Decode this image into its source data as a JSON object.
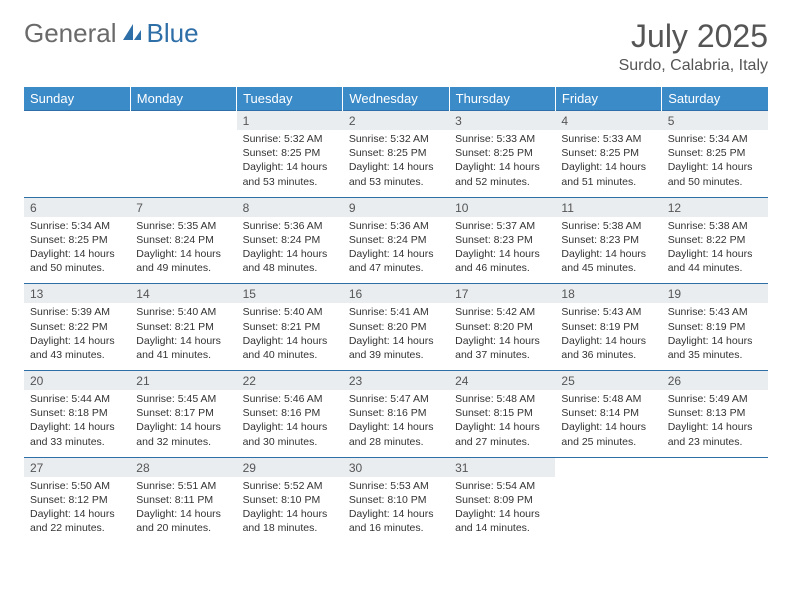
{
  "logo": {
    "general": "General",
    "blue": "Blue"
  },
  "title": "July 2025",
  "location": "Surdo, Calabria, Italy",
  "colors": {
    "header_bg": "#3b8bc9",
    "header_text": "#ffffff",
    "daynum_bg": "#e9edf0",
    "border": "#2f6fa8",
    "body_text": "#333333",
    "title_text": "#555555"
  },
  "dow": [
    "Sunday",
    "Monday",
    "Tuesday",
    "Wednesday",
    "Thursday",
    "Friday",
    "Saturday"
  ],
  "first_day_col": 2,
  "days": {
    "1": {
      "sunrise": "5:32 AM",
      "sunset": "8:25 PM",
      "daylight": "14 hours and 53 minutes."
    },
    "2": {
      "sunrise": "5:32 AM",
      "sunset": "8:25 PM",
      "daylight": "14 hours and 53 minutes."
    },
    "3": {
      "sunrise": "5:33 AM",
      "sunset": "8:25 PM",
      "daylight": "14 hours and 52 minutes."
    },
    "4": {
      "sunrise": "5:33 AM",
      "sunset": "8:25 PM",
      "daylight": "14 hours and 51 minutes."
    },
    "5": {
      "sunrise": "5:34 AM",
      "sunset": "8:25 PM",
      "daylight": "14 hours and 50 minutes."
    },
    "6": {
      "sunrise": "5:34 AM",
      "sunset": "8:25 PM",
      "daylight": "14 hours and 50 minutes."
    },
    "7": {
      "sunrise": "5:35 AM",
      "sunset": "8:24 PM",
      "daylight": "14 hours and 49 minutes."
    },
    "8": {
      "sunrise": "5:36 AM",
      "sunset": "8:24 PM",
      "daylight": "14 hours and 48 minutes."
    },
    "9": {
      "sunrise": "5:36 AM",
      "sunset": "8:24 PM",
      "daylight": "14 hours and 47 minutes."
    },
    "10": {
      "sunrise": "5:37 AM",
      "sunset": "8:23 PM",
      "daylight": "14 hours and 46 minutes."
    },
    "11": {
      "sunrise": "5:38 AM",
      "sunset": "8:23 PM",
      "daylight": "14 hours and 45 minutes."
    },
    "12": {
      "sunrise": "5:38 AM",
      "sunset": "8:22 PM",
      "daylight": "14 hours and 44 minutes."
    },
    "13": {
      "sunrise": "5:39 AM",
      "sunset": "8:22 PM",
      "daylight": "14 hours and 43 minutes."
    },
    "14": {
      "sunrise": "5:40 AM",
      "sunset": "8:21 PM",
      "daylight": "14 hours and 41 minutes."
    },
    "15": {
      "sunrise": "5:40 AM",
      "sunset": "8:21 PM",
      "daylight": "14 hours and 40 minutes."
    },
    "16": {
      "sunrise": "5:41 AM",
      "sunset": "8:20 PM",
      "daylight": "14 hours and 39 minutes."
    },
    "17": {
      "sunrise": "5:42 AM",
      "sunset": "8:20 PM",
      "daylight": "14 hours and 37 minutes."
    },
    "18": {
      "sunrise": "5:43 AM",
      "sunset": "8:19 PM",
      "daylight": "14 hours and 36 minutes."
    },
    "19": {
      "sunrise": "5:43 AM",
      "sunset": "8:19 PM",
      "daylight": "14 hours and 35 minutes."
    },
    "20": {
      "sunrise": "5:44 AM",
      "sunset": "8:18 PM",
      "daylight": "14 hours and 33 minutes."
    },
    "21": {
      "sunrise": "5:45 AM",
      "sunset": "8:17 PM",
      "daylight": "14 hours and 32 minutes."
    },
    "22": {
      "sunrise": "5:46 AM",
      "sunset": "8:16 PM",
      "daylight": "14 hours and 30 minutes."
    },
    "23": {
      "sunrise": "5:47 AM",
      "sunset": "8:16 PM",
      "daylight": "14 hours and 28 minutes."
    },
    "24": {
      "sunrise": "5:48 AM",
      "sunset": "8:15 PM",
      "daylight": "14 hours and 27 minutes."
    },
    "25": {
      "sunrise": "5:48 AM",
      "sunset": "8:14 PM",
      "daylight": "14 hours and 25 minutes."
    },
    "26": {
      "sunrise": "5:49 AM",
      "sunset": "8:13 PM",
      "daylight": "14 hours and 23 minutes."
    },
    "27": {
      "sunrise": "5:50 AM",
      "sunset": "8:12 PM",
      "daylight": "14 hours and 22 minutes."
    },
    "28": {
      "sunrise": "5:51 AM",
      "sunset": "8:11 PM",
      "daylight": "14 hours and 20 minutes."
    },
    "29": {
      "sunrise": "5:52 AM",
      "sunset": "8:10 PM",
      "daylight": "14 hours and 18 minutes."
    },
    "30": {
      "sunrise": "5:53 AM",
      "sunset": "8:10 PM",
      "daylight": "14 hours and 16 minutes."
    },
    "31": {
      "sunrise": "5:54 AM",
      "sunset": "8:09 PM",
      "daylight": "14 hours and 14 minutes."
    }
  },
  "labels": {
    "sunrise": "Sunrise: ",
    "sunset": "Sunset: ",
    "daylight": "Daylight: "
  }
}
